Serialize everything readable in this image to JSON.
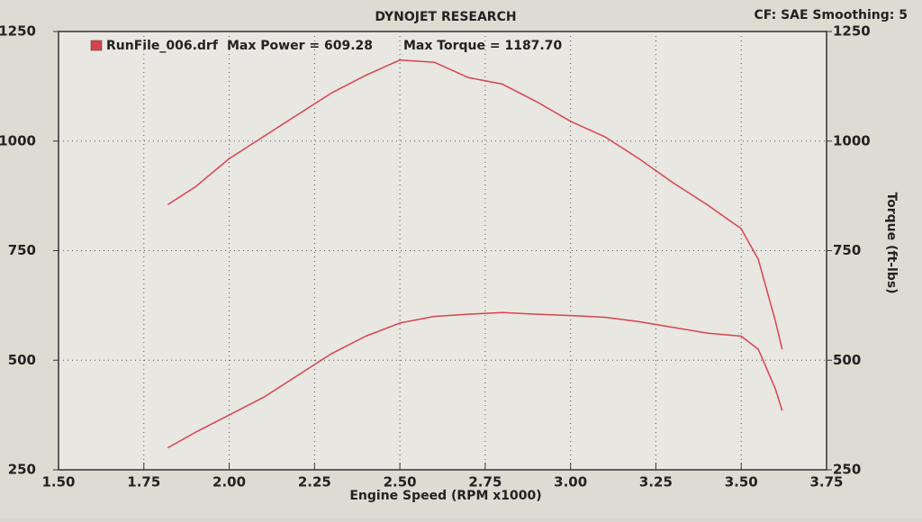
{
  "chart_data": {
    "type": "line",
    "title": "DYNOJET RESEARCH",
    "settings_text": "CF: SAE  Smoothing: 5",
    "legend": "RunFile_006.drf",
    "annotations": [
      "Max Power = 609.28",
      "Max Torque = 1187.70"
    ],
    "x_label": "Engine Speed (RPM x1000)",
    "y2_label": "Torque (ft-lbs)",
    "x": [
      1.82,
      1.9,
      2.0,
      2.1,
      2.2,
      2.3,
      2.4,
      2.5,
      2.6,
      2.7,
      2.8,
      2.9,
      3.0,
      3.1,
      3.2,
      3.3,
      3.4,
      3.5,
      3.55,
      3.6,
      3.62
    ],
    "series": [
      {
        "color": "#d9434f",
        "axis": "y2",
        "values": [
          855,
          895,
          960,
          1010,
          1060,
          1110,
          1150,
          1185,
          1180,
          1145,
          1130,
          1090,
          1045,
          1010,
          960,
          905,
          855,
          800,
          730,
          590,
          525
        ]
      },
      {
        "color": "#d9434f",
        "values": [
          300,
          335,
          375,
          415,
          465,
          515,
          555,
          585,
          600,
          605,
          609,
          605,
          602,
          598,
          588,
          575,
          562,
          555,
          525,
          435,
          385
        ]
      }
    ],
    "xlim": [
      1.5,
      3.75
    ],
    "xticks": [
      {
        "value": 1.5,
        "label": "1.50"
      },
      {
        "value": 1.75,
        "label": "1.75"
      },
      {
        "value": 2.0,
        "label": "2.00"
      },
      {
        "value": 2.25,
        "label": "2.25"
      },
      {
        "value": 2.5,
        "label": "2.50"
      },
      {
        "value": 2.75,
        "label": "2.75"
      },
      {
        "value": 3.0,
        "label": "3.00"
      },
      {
        "value": 3.25,
        "label": "3.25"
      },
      {
        "value": 3.5,
        "label": "3.50"
      },
      {
        "value": 3.75,
        "label": "3.75"
      }
    ],
    "ylim": [
      250,
      1250
    ],
    "yticks": [
      250,
      500,
      750,
      1000,
      1250
    ],
    "y2lim": [
      250,
      1250
    ],
    "y2ticks": [
      250,
      500,
      750,
      1000,
      1250
    ],
    "grid": true
  }
}
